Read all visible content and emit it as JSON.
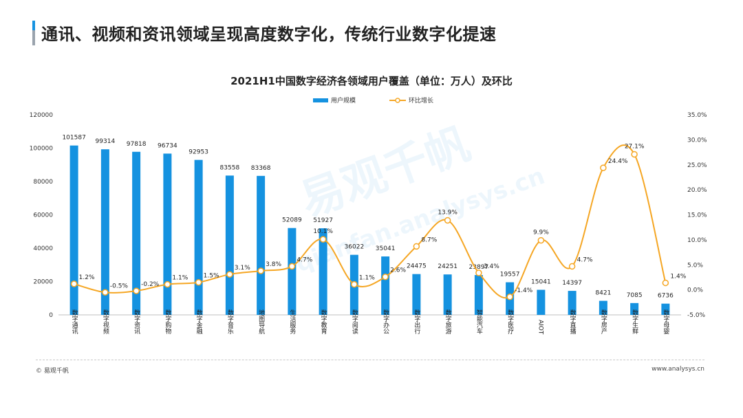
{
  "header": {
    "title": "通讯、视频和资讯领域呈现高度数字化，传统行业数字化提速"
  },
  "watermark": {
    "text": "易观千帆",
    "url": "qianfan.analysys.cn"
  },
  "footer": {
    "copyright": "© 易观千帆",
    "website": "www.analysys.cn"
  },
  "colors": {
    "bar": "#1592e0",
    "line": "#f5a623",
    "accent": "#1592e0"
  },
  "chart_data": {
    "type": "bar",
    "title": "2021H1中国数字经济各领域用户覆盖（单位：万人）及环比",
    "categories": [
      "数字通讯",
      "数字视频",
      "数字资讯",
      "数字购物",
      "数字金融",
      "数字音乐",
      "地图导航",
      "生活服务",
      "数字教育",
      "数字阅读",
      "数字办公",
      "数字出行",
      "数字旅游",
      "智能汽车",
      "数字医疗",
      "AIOT",
      "数字直播",
      "数字房产",
      "数字生鲜",
      "数字母婴"
    ],
    "series": [
      {
        "name": "用户规模",
        "type": "bar",
        "axis": "left",
        "values": [
          101587,
          99314,
          97818,
          96734,
          92953,
          83558,
          83368,
          52089,
          51927,
          36022,
          35041,
          24475,
          24251,
          23897,
          19557,
          15041,
          14397,
          8421,
          7085,
          6736
        ],
        "labels": [
          "101587",
          "99314",
          "97818",
          "96734",
          "92953",
          "83558",
          "83368",
          "52089",
          "51927",
          "36022",
          "35041",
          "24475",
          "24251",
          "23897",
          "19557",
          "15041",
          "14397",
          "8421",
          "7085",
          "6736"
        ]
      },
      {
        "name": "环比增长",
        "type": "line",
        "axis": "right",
        "values": [
          1.2,
          -0.5,
          -0.2,
          1.1,
          1.5,
          3.1,
          3.8,
          4.7,
          10.1,
          1.1,
          2.6,
          8.7,
          13.9,
          3.4,
          -1.4,
          9.9,
          4.7,
          24.4,
          27.1,
          1.4
        ],
        "labels": [
          "1.2%",
          "-0.5%",
          "-0.2%",
          "1.1%",
          "1.5%",
          "3.1%",
          "3.8%",
          "4.7%",
          "10.1%",
          "1.1%",
          "2.6%",
          "8.7%",
          "13.9%",
          "3.4%",
          "-1.4%",
          "9.9%",
          "4.7%",
          "24.4%",
          "27.1%",
          "1.4%"
        ]
      }
    ],
    "y_left": {
      "range": [
        0,
        120000
      ],
      "ticks": [
        "0",
        "20000",
        "40000",
        "60000",
        "80000",
        "100000",
        "120000"
      ]
    },
    "y_right": {
      "range": [
        -5,
        35
      ],
      "ticks": [
        "-5.0%",
        "0.0%",
        "5.0%",
        "10.0%",
        "15.0%",
        "20.0%",
        "25.0%",
        "30.0%",
        "35.0%"
      ]
    },
    "legend": {
      "position": "top-center",
      "items": [
        "用户规模",
        "环比增长"
      ]
    },
    "grid": false
  }
}
